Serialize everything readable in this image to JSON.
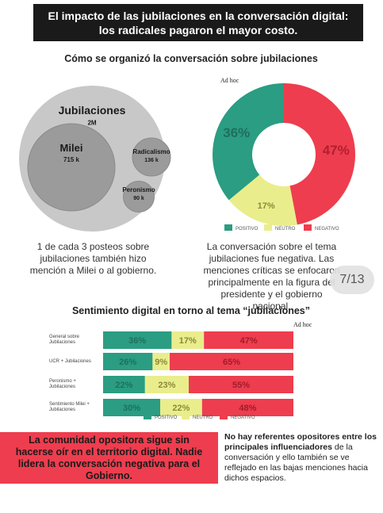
{
  "header": {
    "title": "El impacto de las jubilaciones en la conversación digital: los radicales pagaron el mayor costo."
  },
  "section_title": "Cómo se organizó la conversación sobre jubilaciones",
  "logo": "Ad hoc",
  "chart_data": [
    {
      "type": "bubble",
      "categories": [
        "Jubilaciones",
        "Milei",
        "Radicalismo",
        "Peronismo"
      ],
      "values": [
        2000000,
        715000,
        136000,
        90000
      ],
      "value_labels": [
        "2M",
        "715 k",
        "136 k",
        "90 k"
      ],
      "colors": [
        "#c8c8c8",
        "#9b9b9b",
        "#9b9b9b",
        "#9b9b9b"
      ]
    },
    {
      "type": "pie",
      "categories": [
        "POSITIVO",
        "NEUTRO",
        "NEGATIVO"
      ],
      "values": [
        36,
        17,
        47
      ],
      "value_labels": [
        "36%",
        "17%",
        "47%"
      ],
      "colors": [
        "#2a9d82",
        "#eaed8c",
        "#ee3d4e"
      ]
    },
    {
      "type": "stacked_bar",
      "title": "Sentimiento digital en torno al tema “jubilaciones”",
      "categories": [
        "General sobre Jubilaciones",
        "UCR + Jubilaciones",
        "Peronismo + Jubilaciones",
        "Sentimiento Milei + Jubilaciones"
      ],
      "xlim": [
        0,
        100
      ],
      "series": [
        {
          "name": "POSITIVO",
          "color": "#2a9d82",
          "values": [
            36,
            26,
            22,
            30
          ],
          "value_labels": [
            "36%",
            "26%",
            "22%",
            "30%"
          ]
        },
        {
          "name": "NEUTRO",
          "color": "#eaed8c",
          "values": [
            17,
            9,
            23,
            22
          ],
          "value_labels": [
            "17%",
            "9%",
            "23%",
            "22%"
          ]
        },
        {
          "name": "NEGATIVO",
          "color": "#ee3d4e",
          "values": [
            47,
            65,
            55,
            48
          ],
          "value_labels": [
            "47%",
            "65%",
            "55%",
            "48%"
          ]
        }
      ]
    }
  ],
  "captions": [
    "1 de cada 3 posteos sobre jubilaciones también hizo mención a Milei o al gobierno.",
    "La conversación sobre el tema jubilaciones fue negativa. Las menciones críticas se enfocaron principalmente en la figura del presidente y el gobierno nacional."
  ],
  "page_indicator": "7/13",
  "footer": {
    "left": "La comunidad opositora sigue sin hacerse oír en el territorio digital. Nadie lidera la conversación negativa para el Gobierno.",
    "right_bold": "No hay referentes opositores entre los principales influenciadores",
    "right_text": "de la conversación y ello también se ve reflejado en las bajas menciones hacia dichos espacios."
  }
}
